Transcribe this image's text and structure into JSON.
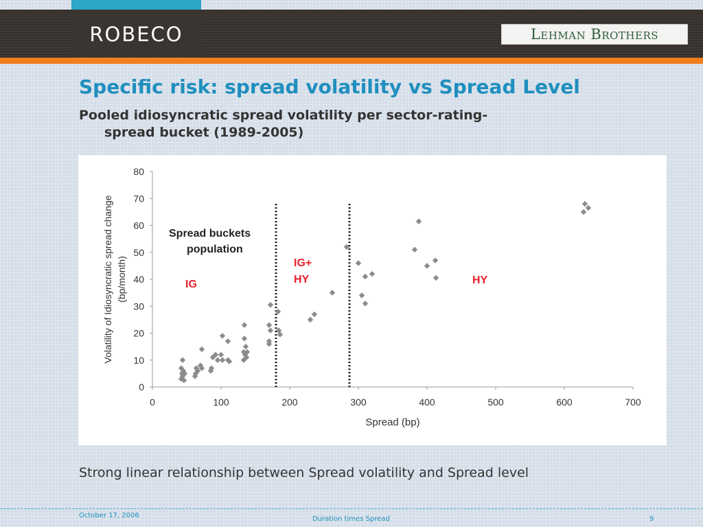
{
  "header": {
    "left_logo": "ROBECO",
    "right_logo": "Lehman Brothers",
    "colors": {
      "brand_bar": "#3d3833",
      "accent_orange": "#f07f1b",
      "accent_cyan": "#2ea6c8",
      "title_blue": "#1f8fbe"
    }
  },
  "slide": {
    "title": "Specific risk: spread volatility vs Spread Level",
    "subtitle_line1": "Pooled idiosyncratic spread volatility per sector-rating-",
    "subtitle_line2": "spread bucket (1989-2005)",
    "note": "Strong linear relationship between Spread volatility and Spread level"
  },
  "footer": {
    "date": "October 17, 2006",
    "center": "Duration times Spread",
    "page": "9"
  },
  "chart_data": {
    "type": "scatter",
    "xlabel": "Spread (bp)",
    "ylabel": "Volatility of Idiosyncratic spread change",
    "ylabel_unit": "(bp/month)",
    "xlim": [
      0,
      700
    ],
    "ylim": [
      0,
      80
    ],
    "xticks": [
      0,
      100,
      200,
      300,
      400,
      500,
      600,
      700
    ],
    "yticks": [
      0,
      10,
      20,
      30,
      40,
      50,
      60,
      70,
      80
    ],
    "grid": false,
    "marker_color": "#8c8c8c",
    "annotations": {
      "population_title_line1": "Spread buckets",
      "population_title_line2": "population",
      "ig": "IG",
      "igplus_line1": "IG+",
      "igplus_line2": "HY",
      "hy": "HY",
      "label_color": "#e8202a"
    },
    "bucket_boundaries": [
      180,
      287
    ],
    "points": [
      [
        42,
        3
      ],
      [
        44,
        4
      ],
      [
        43,
        5
      ],
      [
        45,
        6
      ],
      [
        42,
        7
      ],
      [
        46,
        2.5
      ],
      [
        47,
        5
      ],
      [
        44,
        10
      ],
      [
        62,
        4
      ],
      [
        63,
        5
      ],
      [
        64,
        7
      ],
      [
        66,
        6
      ],
      [
        70,
        8
      ],
      [
        72,
        7
      ],
      [
        72,
        14
      ],
      [
        85,
        6
      ],
      [
        86,
        7
      ],
      [
        88,
        11
      ],
      [
        92,
        12
      ],
      [
        95,
        10
      ],
      [
        100,
        12
      ],
      [
        102,
        10
      ],
      [
        102,
        19
      ],
      [
        110,
        17
      ],
      [
        110,
        10
      ],
      [
        112,
        9.5
      ],
      [
        133,
        10
      ],
      [
        133,
        13
      ],
      [
        134,
        23
      ],
      [
        134,
        18
      ],
      [
        135,
        12
      ],
      [
        136,
        15
      ],
      [
        137,
        11
      ],
      [
        138,
        13
      ],
      [
        170,
        16
      ],
      [
        170,
        17
      ],
      [
        170,
        23
      ],
      [
        172,
        21
      ],
      [
        172,
        30.5
      ],
      [
        183,
        28
      ],
      [
        184,
        21
      ],
      [
        186,
        19.5
      ],
      [
        230,
        25
      ],
      [
        236,
        27
      ],
      [
        262,
        35
      ],
      [
        283,
        52
      ],
      [
        300,
        46
      ],
      [
        305,
        34
      ],
      [
        310,
        41
      ],
      [
        310,
        31
      ],
      [
        320,
        42
      ],
      [
        382,
        51
      ],
      [
        388,
        61.5
      ],
      [
        400,
        45
      ],
      [
        412,
        47
      ],
      [
        413,
        40.5
      ],
      [
        628,
        65
      ],
      [
        630,
        68
      ],
      [
        635,
        66.5
      ]
    ]
  }
}
